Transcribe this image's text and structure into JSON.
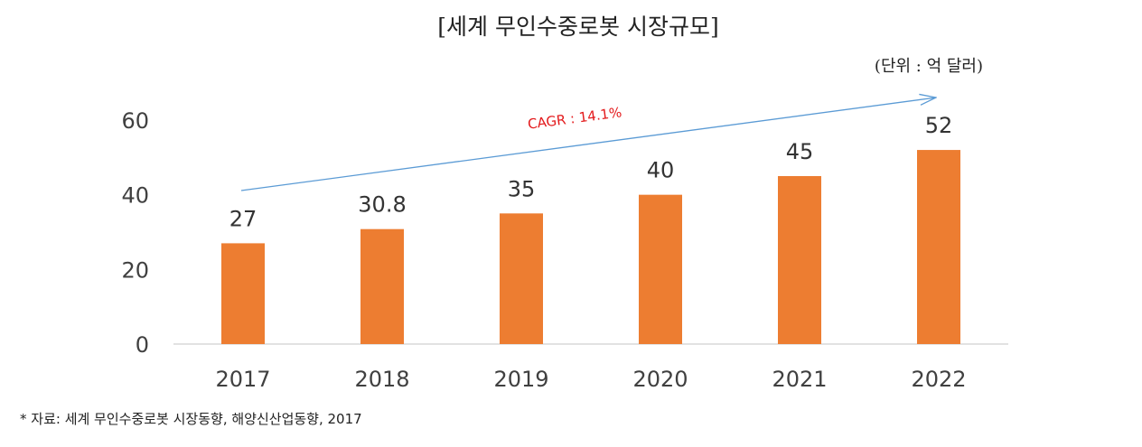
{
  "chart_data": {
    "type": "bar",
    "title": "[세계 무인수중로봇 시장규모]",
    "unit_note": "(단위 : 억 달러)",
    "categories": [
      "2017",
      "2018",
      "2019",
      "2020",
      "2021",
      "2022"
    ],
    "values": [
      27,
      30.8,
      35,
      40,
      45,
      52
    ],
    "data_labels": [
      "27",
      "30.8",
      "35",
      "40",
      "45",
      "52"
    ],
    "yticks": [
      0,
      20,
      40,
      60
    ],
    "ylim": [
      0,
      60
    ],
    "grid": false,
    "legend": "none",
    "annotation": "CAGR : 14.1%",
    "bar_color": "#ed7d31",
    "arrow_color": "#5b9bd5",
    "annotation_color": "#e31a1c"
  },
  "source_note": "* 자료: 세계 무인수중로봇 시장동향, 해양신산업동향, 2017"
}
